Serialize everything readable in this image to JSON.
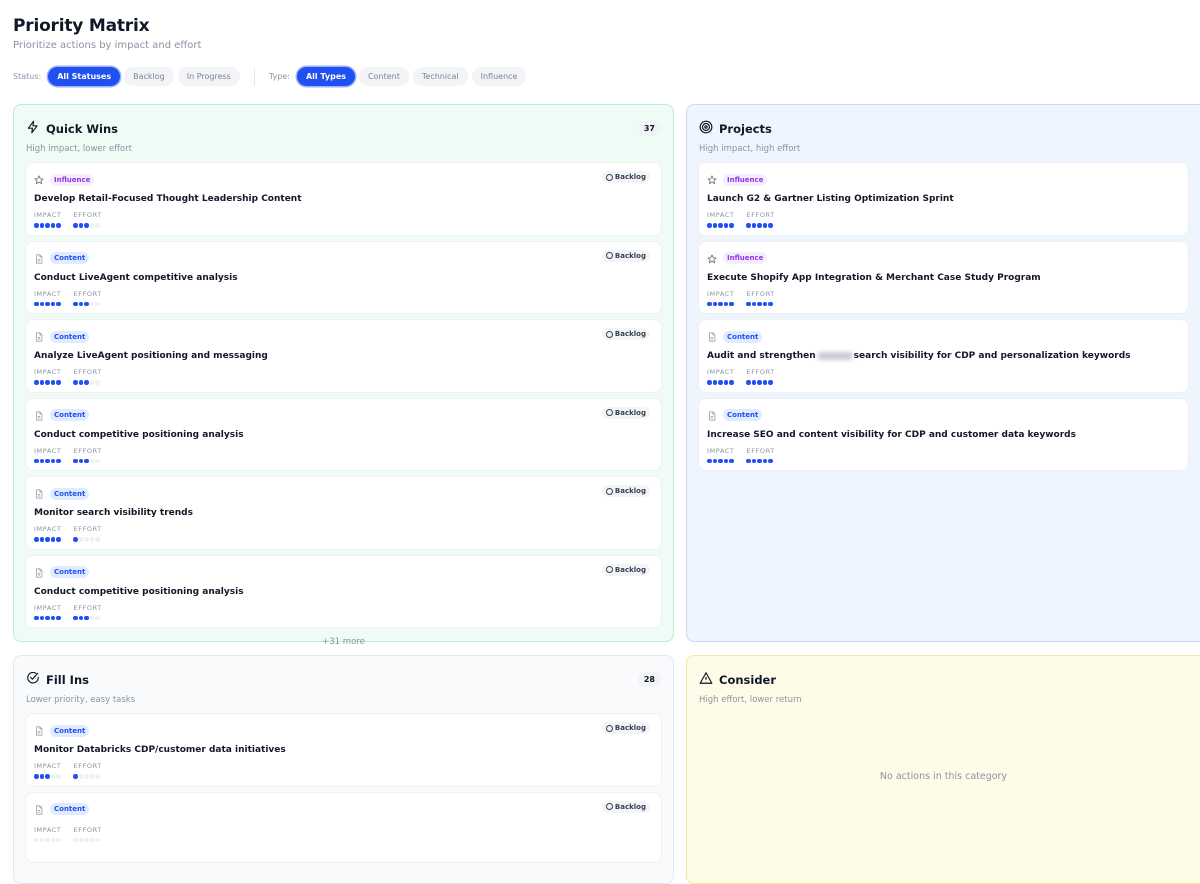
{
  "header": {
    "title": "Priority Matrix",
    "subtitle": "Prioritize actions by impact and effort"
  },
  "filters": {
    "status_label": "Status:",
    "status_options": [
      {
        "label": "All Statuses",
        "active": true
      },
      {
        "label": "Backlog",
        "active": false
      },
      {
        "label": "In Progress",
        "active": false
      }
    ],
    "type_label": "Type:",
    "type_options": [
      {
        "label": "All Types",
        "active": true
      },
      {
        "label": "Content",
        "active": false
      },
      {
        "label": "Technical",
        "active": false
      },
      {
        "label": "Influence",
        "active": false
      }
    ]
  },
  "labels": {
    "impact": "IMPACT",
    "effort": "EFFORT"
  },
  "colors": {
    "accent": "#2150f0",
    "influence": "#9333ea"
  },
  "quadrants": [
    {
      "key": "quick-wins",
      "icon": "lightning-icon",
      "title": "Quick Wins",
      "subtitle": "High impact, lower effort",
      "count": "37",
      "more": "+31 more",
      "style": "q-green",
      "cards": [
        {
          "type": "Influence",
          "icon": "star-icon",
          "status": "Backlog",
          "title": "Develop Retail-Focused Thought Leadership Content",
          "impact": 5,
          "effort": 3
        },
        {
          "type": "Content",
          "icon": "document-icon",
          "status": "Backlog",
          "title": "Conduct LiveAgent competitive analysis",
          "impact": 5,
          "effort": 3
        },
        {
          "type": "Content",
          "icon": "document-icon",
          "status": "Backlog",
          "title": "Analyze LiveAgent positioning and messaging",
          "impact": 5,
          "effort": 3
        },
        {
          "type": "Content",
          "icon": "document-icon",
          "status": "Backlog",
          "title": "Conduct competitive positioning analysis",
          "impact": 5,
          "effort": 3
        },
        {
          "type": "Content",
          "icon": "document-icon",
          "status": "Backlog",
          "title": "Monitor search visibility trends",
          "impact": 5,
          "effort": 1
        },
        {
          "type": "Content",
          "icon": "document-icon",
          "status": "Backlog",
          "title": "Conduct competitive positioning analysis",
          "impact": 5,
          "effort": 3
        }
      ]
    },
    {
      "key": "projects",
      "icon": "target-icon",
      "title": "Projects",
      "subtitle": "High impact, high effort",
      "style": "q-blue",
      "cards": [
        {
          "type": "Influence",
          "icon": "star-icon",
          "title": "Launch G2 & Gartner Listing Optimization Sprint",
          "impact": 5,
          "effort": 5
        },
        {
          "type": "Influence",
          "icon": "star-icon",
          "title": "Execute Shopify App Integration & Merchant Case Study Program",
          "impact": 5,
          "effort": 5
        },
        {
          "type": "Content",
          "icon": "document-icon",
          "title": "Audit and strengthen",
          "title_after": "search visibility for CDP and personalization keywords",
          "redacted": true,
          "impact": 5,
          "effort": 5
        },
        {
          "type": "Content",
          "icon": "document-icon",
          "title": "Increase SEO and content visibility for CDP and customer data keywords",
          "impact": 5,
          "effort": 5
        }
      ]
    },
    {
      "key": "fill-ins",
      "icon": "check-circle-icon",
      "title": "Fill Ins",
      "subtitle": "Lower priority, easy tasks",
      "count": "28",
      "style": "q-gray",
      "cards": [
        {
          "type": "Content",
          "icon": "document-icon",
          "status": "Backlog",
          "title": "Monitor Databricks CDP/customer data initiatives",
          "impact": 3,
          "effort": 1
        },
        {
          "type": "Content",
          "icon": "document-icon",
          "status": "Backlog",
          "title": "",
          "impact": 0,
          "effort": 0
        }
      ]
    },
    {
      "key": "consider",
      "icon": "warning-icon",
      "title": "Consider",
      "subtitle": "High effort, lower return",
      "empty": "No actions in this category",
      "style": "q-yellow",
      "cards": []
    }
  ]
}
